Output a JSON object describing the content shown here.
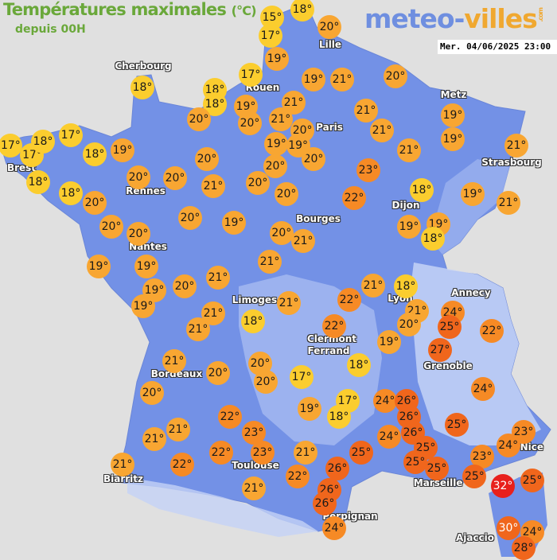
{
  "header": {
    "title": "Températures maximales",
    "unit": "(°C)",
    "subtitle": "depuis 00H",
    "logo_part1": "meteo-",
    "logo_part2": "villes",
    "logo_suffix": ".com",
    "timestamp": "Mer. 04/06/2025 23:00"
  },
  "colors": {
    "background": "#e0e0e0",
    "land": "#7391e6",
    "relief": "#a9bdf2",
    "temp_le_18": "#fbcd2e",
    "temp_19_21": "#f8a632",
    "temp_22_24": "#f68a25",
    "temp_25_30": "#f0661c",
    "temp_ge_31": "#e8201c"
  },
  "cities": [
    "Cherbourg",
    "Lille",
    "Rouen",
    "Paris",
    "Metz",
    "Strasbourg",
    "Brest",
    "Rennes",
    "Dijon",
    "Bourges",
    "Nantes",
    "Annecy",
    "Limoges",
    "Lyon",
    "Clermont",
    "Ferrand",
    "Grenoble",
    "Bordeaux",
    "Nice",
    "Toulouse",
    "Biarritz",
    "Marseille",
    "Perpignan",
    "Ajaccio"
  ],
  "temperatures": [
    15,
    18,
    17,
    20,
    19,
    18,
    17,
    18,
    18,
    19,
    20,
    20,
    21,
    21,
    20,
    19,
    21,
    20,
    21,
    21,
    19,
    19,
    21,
    21,
    23,
    20,
    19,
    19,
    20,
    17,
    17,
    18,
    17,
    18,
    19,
    18,
    18,
    20,
    20,
    20,
    21,
    20,
    20,
    22,
    18,
    19,
    21,
    20,
    20,
    20,
    20,
    19,
    20,
    21,
    19,
    19,
    18,
    19,
    19,
    19,
    19,
    20,
    21,
    21,
    21,
    18,
    21,
    20,
    22,
    21,
    21,
    21,
    18,
    22,
    19,
    24,
    25,
    22,
    27,
    18,
    21,
    20,
    20,
    20,
    17,
    20,
    17,
    18,
    19,
    24,
    26,
    26,
    24,
    22,
    21,
    21,
    23,
    24,
    26,
    25,
    23,
    24,
    25,
    25,
    25,
    25,
    23,
    25,
    21,
    23,
    22,
    22,
    21,
    26,
    22,
    26,
    26,
    24,
    21,
    32,
    25,
    30,
    24,
    28
  ]
}
